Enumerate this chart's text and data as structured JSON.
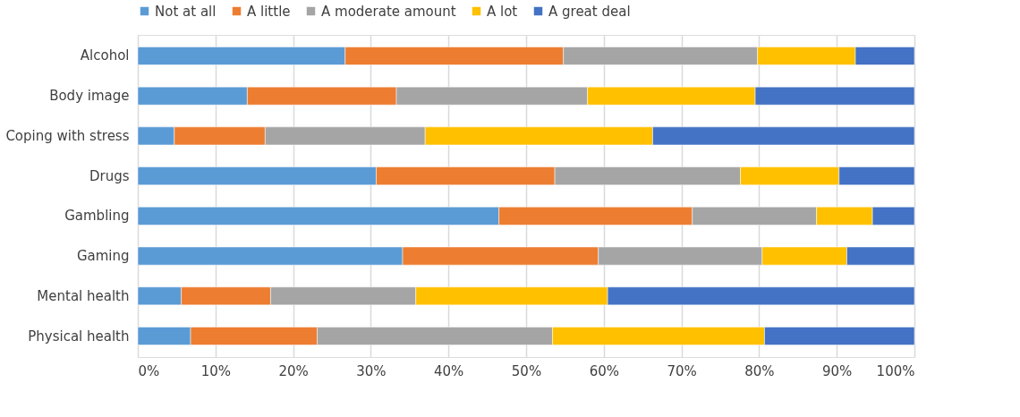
{
  "chart_data": {
    "type": "bar",
    "orientation": "horizontal",
    "stacked": true,
    "categories": [
      "Alcohol",
      "Body image",
      "Coping with stress",
      "Drugs",
      "Gambling",
      "Gaming",
      "Mental health",
      "Physical health"
    ],
    "series": [
      {
        "name": "Not at all",
        "color": "#5b9bd5",
        "values": [
          26.7,
          14.1,
          4.7,
          30.7,
          46.5,
          34.1,
          5.6,
          6.8
        ]
      },
      {
        "name": "A little",
        "color": "#ed7d31",
        "values": [
          28.1,
          19.2,
          11.7,
          23.0,
          24.9,
          25.2,
          11.5,
          16.3
        ]
      },
      {
        "name": "A moderate amount",
        "color": "#a5a5a5",
        "values": [
          25.0,
          24.6,
          20.6,
          23.9,
          16.0,
          21.1,
          18.7,
          30.3
        ]
      },
      {
        "name": "A lot",
        "color": "#ffc000",
        "values": [
          12.6,
          21.6,
          29.3,
          12.7,
          7.2,
          10.9,
          24.7,
          27.3
        ]
      },
      {
        "name": "A great deal",
        "color": "#4472c4",
        "values": [
          7.6,
          20.5,
          33.7,
          9.7,
          5.4,
          8.7,
          39.5,
          19.3
        ]
      }
    ],
    "xlim": [
      0,
      100
    ],
    "xticks": [
      {
        "value": 0,
        "label": "0%"
      },
      {
        "value": 10,
        "label": "10%"
      },
      {
        "value": 20,
        "label": "20%"
      },
      {
        "value": 30,
        "label": "30%"
      },
      {
        "value": 40,
        "label": "40%"
      },
      {
        "value": 50,
        "label": "50%"
      },
      {
        "value": 60,
        "label": "60%"
      },
      {
        "value": 70,
        "label": "70%"
      },
      {
        "value": 80,
        "label": "80%"
      },
      {
        "value": 90,
        "label": "90%"
      },
      {
        "value": 100,
        "label": "100%"
      }
    ],
    "grid": "x",
    "legend": "top"
  }
}
